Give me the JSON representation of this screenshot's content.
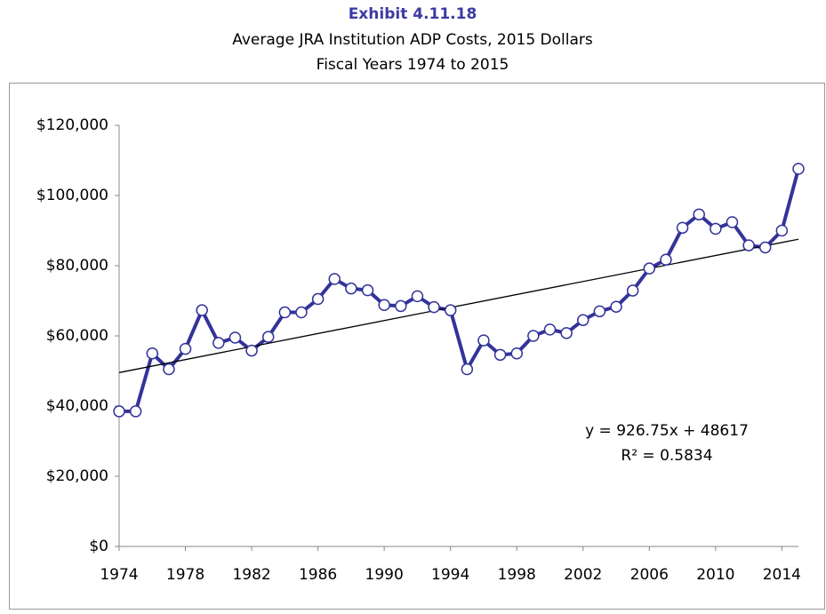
{
  "chart_data": {
    "type": "line",
    "title": "Exhibit 4.11.18",
    "subtitle": [
      "Average JRA Institution ADP Costs, 2015 Dollars",
      "Fiscal Years 1974 to 2015"
    ],
    "x": [
      1974,
      1975,
      1976,
      1977,
      1978,
      1979,
      1980,
      1981,
      1982,
      1983,
      1984,
      1985,
      1986,
      1987,
      1988,
      1989,
      1990,
      1991,
      1992,
      1993,
      1994,
      1995,
      1996,
      1997,
      1998,
      1999,
      2000,
      2001,
      2002,
      2003,
      2004,
      2005,
      2006,
      2007,
      2008,
      2009,
      2010,
      2011,
      2012,
      2013,
      2014,
      2015
    ],
    "series": [
      {
        "name": "Average JRA Institution ADP Costs",
        "color": "#33339a",
        "values": [
          38500,
          38500,
          55000,
          50500,
          56300,
          67300,
          58000,
          59500,
          55800,
          59700,
          66700,
          66700,
          70500,
          76200,
          73500,
          73000,
          68800,
          68500,
          71300,
          68200,
          67300,
          50500,
          58700,
          54600,
          55000,
          60000,
          61800,
          60800,
          64500,
          67000,
          68300,
          72900,
          79200,
          81700,
          90800,
          94600,
          90500,
          92400,
          85800,
          85200,
          90000,
          107600
        ]
      }
    ],
    "trendline": {
      "slope": 926.75,
      "intercept": 48617,
      "color": "#000000",
      "equation": "y = 926.75x + 48617",
      "r_squared": "R² = 0.5834"
    },
    "xlim": [
      1974,
      2015
    ],
    "xticks": [
      1974,
      1978,
      1982,
      1986,
      1990,
      1994,
      1998,
      2002,
      2006,
      2010,
      2014
    ],
    "ylim": [
      0,
      120000
    ],
    "yticks": [
      {
        "value": 0,
        "label": "$0"
      },
      {
        "value": 20000,
        "label": "$20,000"
      },
      {
        "value": 40000,
        "label": "$40,000"
      },
      {
        "value": 60000,
        "label": "$60,000"
      },
      {
        "value": 80000,
        "label": "$80,000"
      },
      {
        "value": 100000,
        "label": "$100,000"
      },
      {
        "value": 120000,
        "label": "$120,000"
      }
    ],
    "grid": false
  }
}
